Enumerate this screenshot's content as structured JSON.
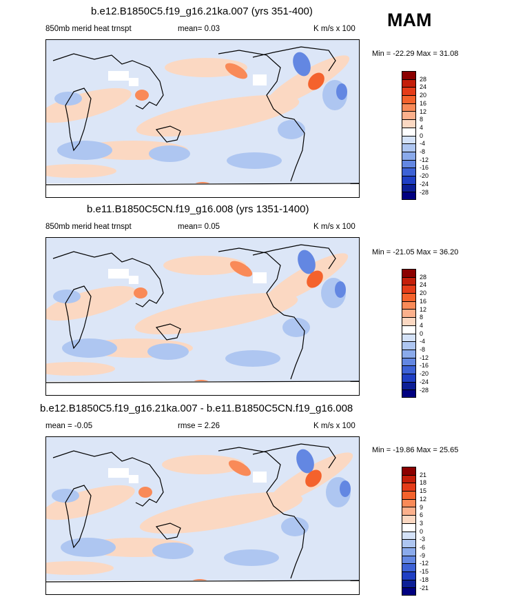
{
  "season": "MAM",
  "panels": [
    {
      "title": "b.e12.B1850C5.f19_g16.21ka.007 (yrs 351-400)",
      "left_label": "850mb merid heat trnspt",
      "mid_label": "mean=   0.03",
      "right_label": "K m/s x 100",
      "minmax": "Min = -22.29 Max =  31.08",
      "levels": [
        "28",
        "24",
        "20",
        "16",
        "12",
        "8",
        "4",
        "0",
        "-4",
        "-8",
        "-12",
        "-16",
        "-20",
        "-24",
        "-28"
      ],
      "colors": [
        "#8b0000",
        "#c41e0a",
        "#e53c19",
        "#f4622c",
        "#f98a58",
        "#fbb08c",
        "#fbd8c2",
        "#ffffff",
        "#d4e2f8",
        "#aec6f1",
        "#8aaaeb",
        "#6387e2",
        "#3d62d6",
        "#1f3fc4",
        "#0c1f96",
        "#000080"
      ]
    },
    {
      "title": "b.e11.B1850C5CN.f19_g16.008 (yrs 1351-1400)",
      "left_label": "850mb merid heat trnspt",
      "mid_label": "mean=   0.05",
      "right_label": "K m/s x 100",
      "minmax": "Min = -21.05 Max =  36.20",
      "levels": [
        "28",
        "24",
        "20",
        "16",
        "12",
        "8",
        "4",
        "0",
        "-4",
        "-8",
        "-12",
        "-16",
        "-20",
        "-24",
        "-28"
      ],
      "colors": [
        "#8b0000",
        "#c41e0a",
        "#e53c19",
        "#f4622c",
        "#f98a58",
        "#fbb08c",
        "#fbd8c2",
        "#ffffff",
        "#d4e2f8",
        "#aec6f1",
        "#8aaaeb",
        "#6387e2",
        "#3d62d6",
        "#1f3fc4",
        "#0c1f96",
        "#000080"
      ]
    },
    {
      "title": "b.e12.B1850C5.f19_g16.21ka.007 - b.e11.B1850C5CN.f19_g16.008",
      "left_label": "mean =  -0.05",
      "mid_label": "rmse =   2.26",
      "right_label": "K m/s x 100",
      "minmax": "Min = -19.86 Max =  25.65",
      "levels": [
        "21",
        "18",
        "15",
        "12",
        "9",
        "6",
        "3",
        "0",
        "-3",
        "-6",
        "-9",
        "-12",
        "-15",
        "-18",
        "-21"
      ],
      "colors": [
        "#8b0000",
        "#c41e0a",
        "#e53c19",
        "#f4622c",
        "#f98a58",
        "#fbb08c",
        "#fbd8c2",
        "#ffffff",
        "#d4e2f8",
        "#aec6f1",
        "#8aaaeb",
        "#6387e2",
        "#3d62d6",
        "#1f3fc4",
        "#0c1f96",
        "#000080"
      ]
    }
  ],
  "chart_data": [
    {
      "type": "heatmap",
      "title": "b.e12.B1850C5.f19_g16.21ka.007 (yrs 351-400)",
      "variable": "850mb merid heat trnspt",
      "units": "K m/s x 100",
      "mean": 0.03,
      "min": -22.29,
      "max": 31.08,
      "contour_levels": [
        -28,
        -24,
        -20,
        -16,
        -12,
        -8,
        -4,
        0,
        4,
        8,
        12,
        16,
        20,
        24,
        28
      ]
    },
    {
      "type": "heatmap",
      "title": "b.e11.B1850C5CN.f19_g16.008 (yrs 1351-1400)",
      "variable": "850mb merid heat trnspt",
      "units": "K m/s x 100",
      "mean": 0.05,
      "min": -21.05,
      "max": 36.2,
      "contour_levels": [
        -28,
        -24,
        -20,
        -16,
        -12,
        -8,
        -4,
        0,
        4,
        8,
        12,
        16,
        20,
        24,
        28
      ]
    },
    {
      "type": "heatmap",
      "title": "b.e12.B1850C5.f19_g16.21ka.007 - b.e11.B1850C5CN.f19_g16.008",
      "units": "K m/s x 100",
      "mean": -0.05,
      "rmse": 2.26,
      "min": -19.86,
      "max": 25.65,
      "contour_levels": [
        -21,
        -18,
        -15,
        -12,
        -9,
        -6,
        -3,
        0,
        3,
        6,
        9,
        12,
        15,
        18,
        21
      ]
    }
  ]
}
